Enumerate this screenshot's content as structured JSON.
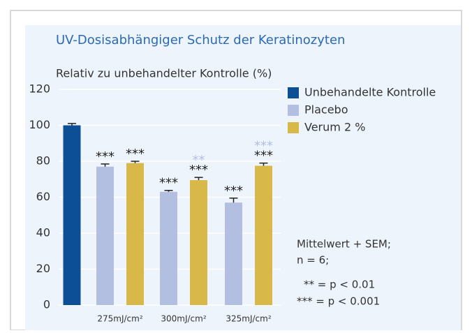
{
  "chart_data": {
    "type": "bar",
    "title": "UV-Dosisabhängiger Schutz der Keratinozyten",
    "y_label": "Relativ zu unbehandelter Kontrolle (%)",
    "categories": [
      null,
      "275mJ/cm²",
      "300mJ/cm²",
      "325mJ/cm²"
    ],
    "series": [
      {
        "name": "Unbehandelte Kontrolle",
        "color": "#0d4f94",
        "values": [
          100,
          null,
          null,
          null
        ],
        "errors": [
          1,
          null,
          null,
          null
        ],
        "significance": [
          null,
          null,
          null,
          null
        ]
      },
      {
        "name": "Placebo",
        "color": "#b3bfe0",
        "values": [
          null,
          77,
          63,
          57
        ],
        "errors": [
          null,
          1.5,
          0.8,
          2.5
        ],
        "significance": [
          null,
          "***",
          "***",
          "***"
        ]
      },
      {
        "name": "Verum 2 %",
        "color": "#d9b84a",
        "values": [
          null,
          79,
          69.5,
          77.5
        ],
        "errors": [
          null,
          1,
          1.5,
          1.5
        ],
        "significance": [
          null,
          "***",
          "***",
          "***"
        ],
        "significance_vs_placebo": [
          null,
          null,
          "**",
          "***"
        ],
        "significance_vs_placebo_color": "#b3bfe0"
      }
    ],
    "ylim": [
      0,
      120
    ],
    "yticks": [
      0,
      20,
      40,
      60,
      80,
      100,
      120
    ],
    "grid": true,
    "notes": [
      "Mittelwert + SEM;",
      "n = 6;",
      "** = p < 0.01",
      "*** = p < 0.001"
    ]
  }
}
